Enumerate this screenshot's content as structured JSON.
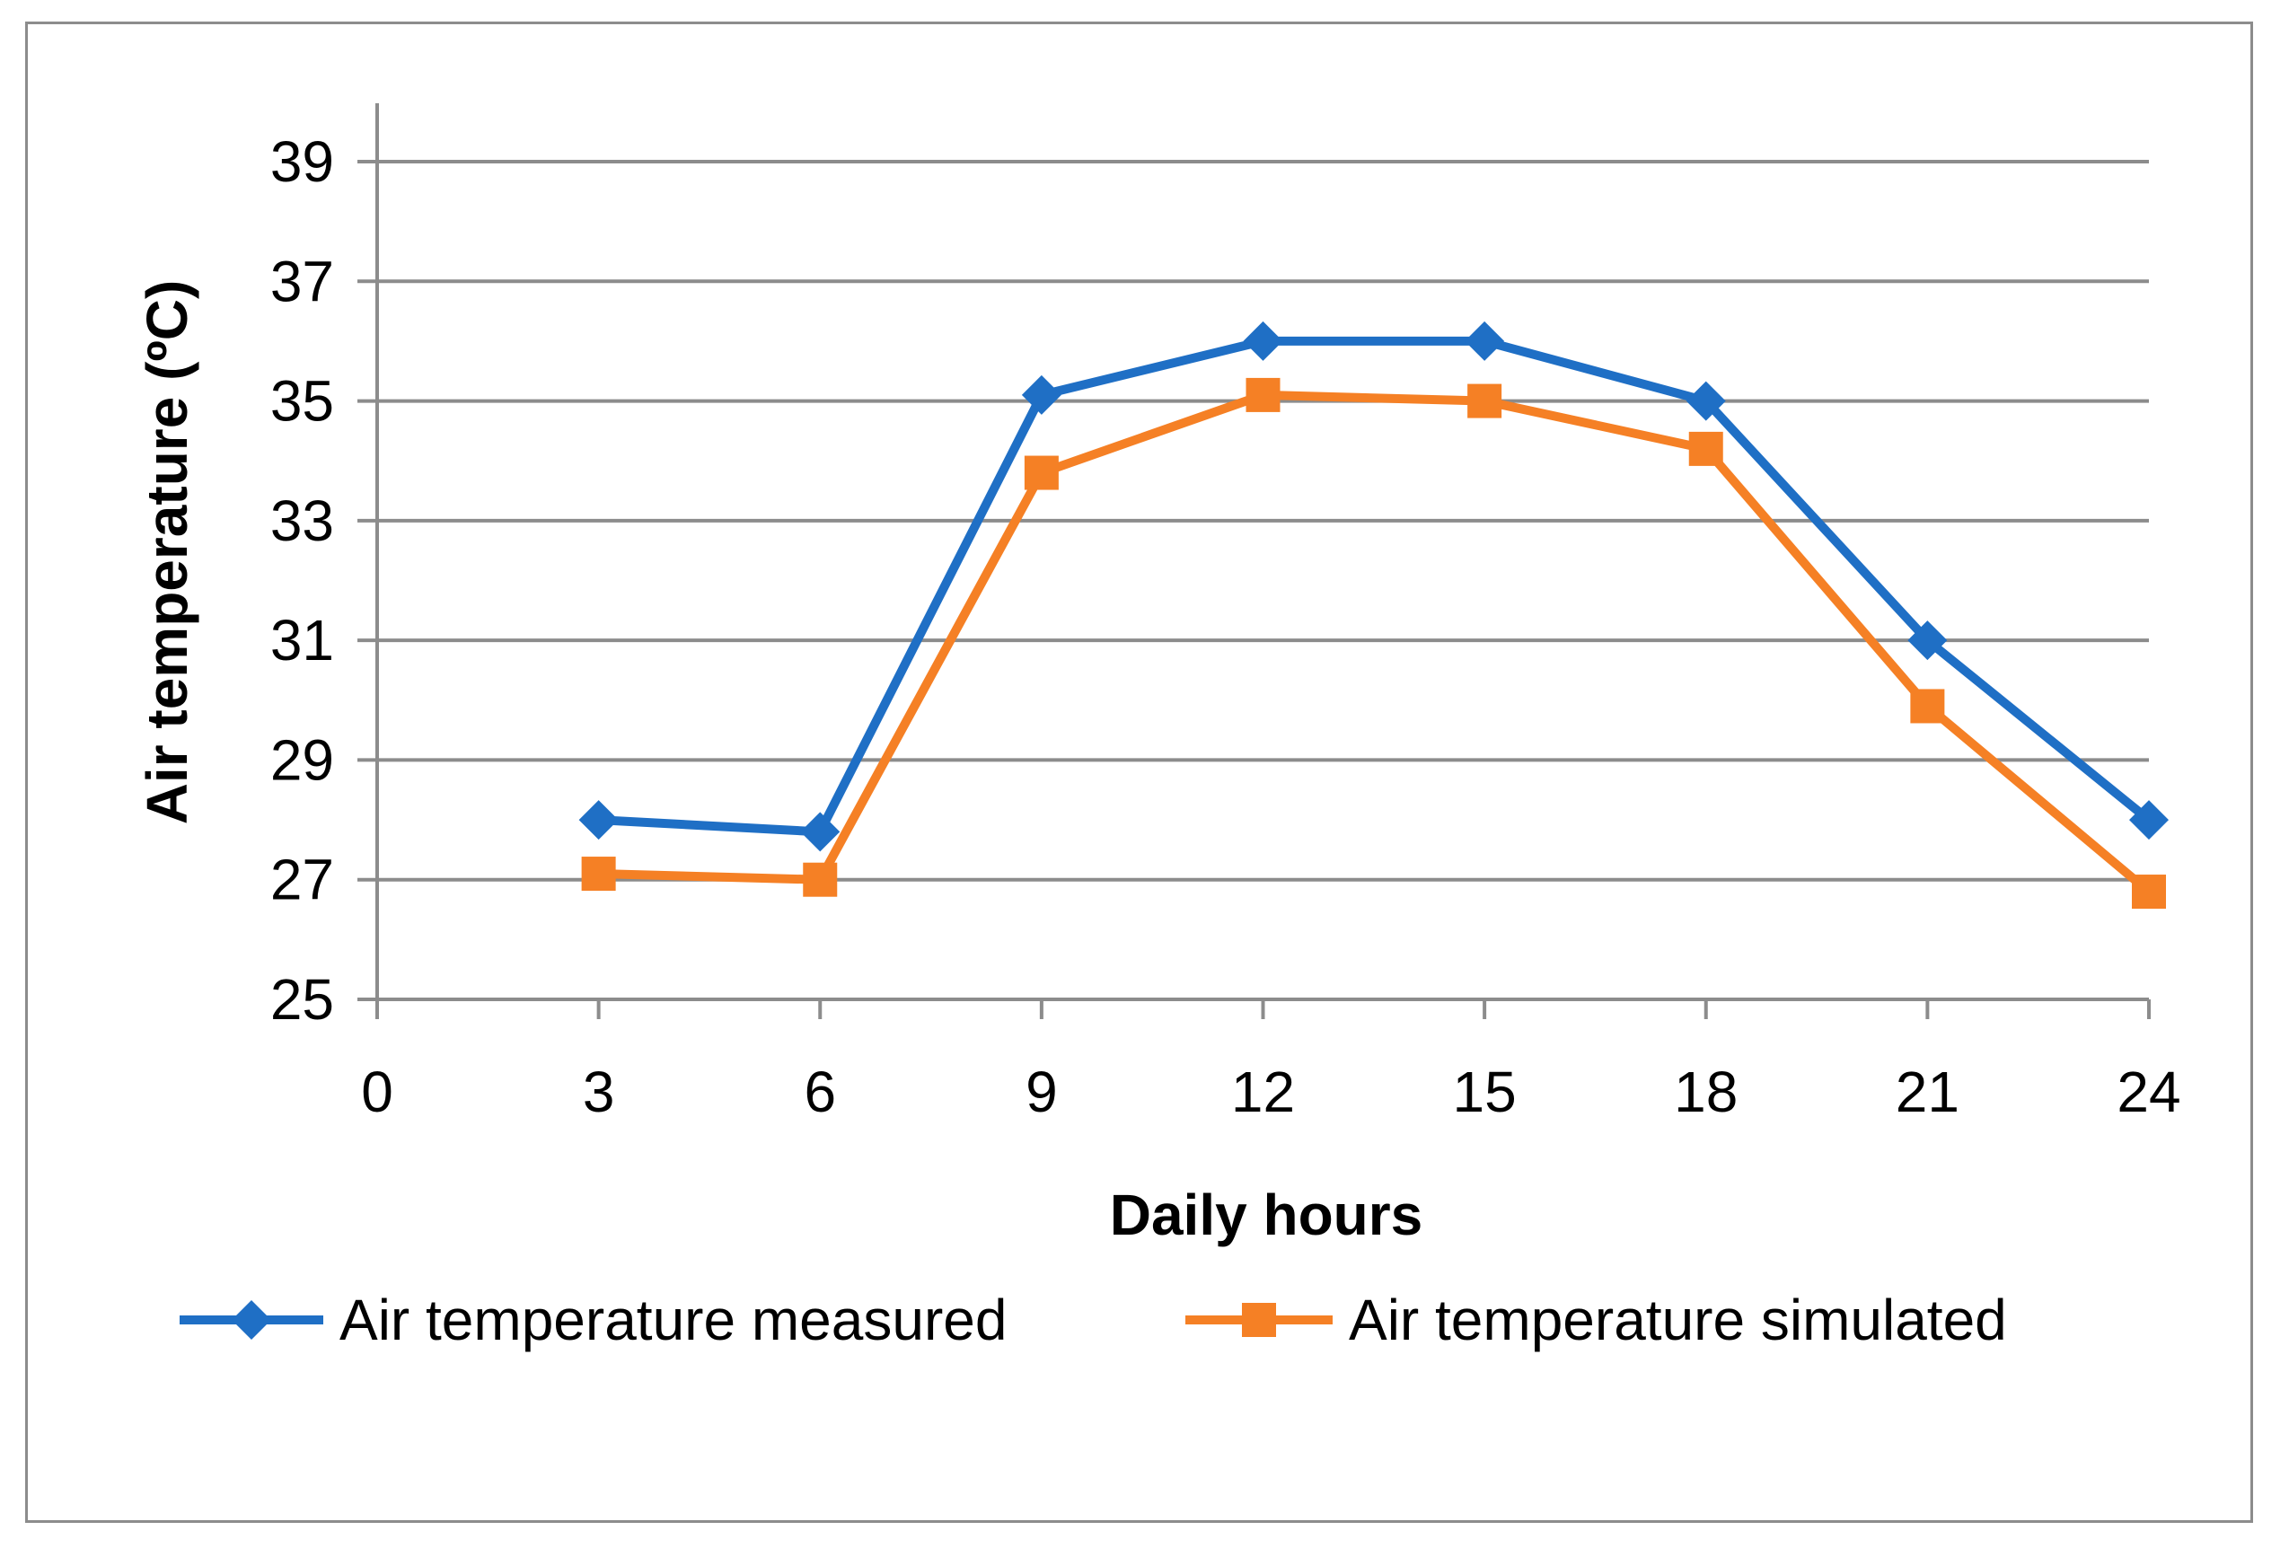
{
  "chart_data": {
    "type": "line",
    "title": "",
    "xlabel": "Daily hours",
    "ylabel": "Air temperature (ºC)",
    "x_ticks": [
      0,
      3,
      6,
      9,
      12,
      15,
      18,
      21,
      24
    ],
    "y_ticks": [
      25,
      27,
      29,
      31,
      33,
      35,
      37,
      39
    ],
    "xlim": [
      0,
      24
    ],
    "ylim": [
      25,
      40
    ],
    "grid": "horizontal",
    "legend_position": "bottom",
    "series": [
      {
        "name": "Air temperature measured",
        "color": "#1f6fc5",
        "marker": "diamond",
        "x": [
          3,
          6,
          9,
          12,
          15,
          18,
          21,
          24
        ],
        "values": [
          28.0,
          27.8,
          35.1,
          36.0,
          36.0,
          35.0,
          31.0,
          28.0
        ]
      },
      {
        "name": "Air temperature simulated",
        "color": "#f58025",
        "marker": "square",
        "x": [
          3,
          6,
          9,
          12,
          15,
          18,
          21,
          24
        ],
        "values": [
          27.1,
          27.0,
          33.8,
          35.1,
          35.0,
          34.2,
          29.9,
          26.8
        ]
      }
    ]
  }
}
